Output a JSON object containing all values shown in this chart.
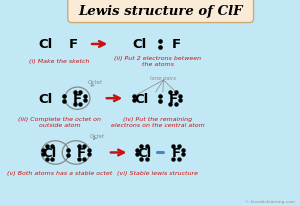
{
  "title": "Lewis structure of ClF",
  "title_fontsize": 9.5,
  "bg_color": "#c2e8f5",
  "title_bg": "#faebd7",
  "text_color": "#000000",
  "red_color": "#cc1111",
  "blue_color": "#4488cc",
  "gray_color": "#888888",
  "step_labels": [
    "(i) Make the sketch",
    "(ii) Put 2 electrons between\nthe atoms",
    "(iii) Complete the octet on\noutside atom",
    "(iv) Put the remaining\nelectrons on the central atom",
    "(v) Both atoms has a stable octet",
    "(vi) Stable lewis structure"
  ],
  "watermark": "© knordislearning.com",
  "xlim": [
    0,
    10
  ],
  "ylim": [
    0,
    7.2
  ]
}
